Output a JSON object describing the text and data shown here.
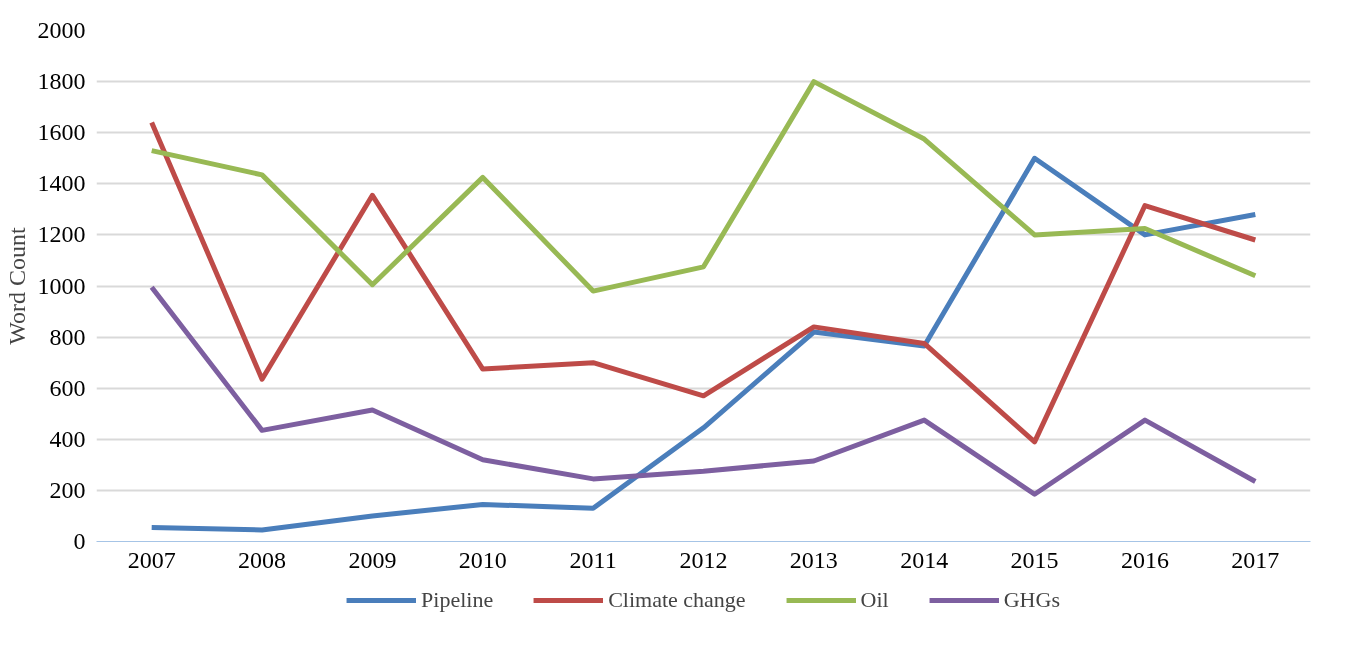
{
  "chart_data": {
    "type": "line",
    "ylabel": "Word Count",
    "categories": [
      "2007",
      "2008",
      "2009",
      "2010",
      "2011",
      "2012",
      "2013",
      "2014",
      "2015",
      "2016",
      "2017"
    ],
    "series": [
      {
        "name": "Pipeline",
        "color": "#4a7ebb",
        "values": [
          55,
          45,
          100,
          145,
          130,
          445,
          820,
          765,
          1500,
          1200,
          1280
        ]
      },
      {
        "name": "Climate change",
        "color": "#be4b48",
        "values": [
          1640,
          635,
          1355,
          675,
          700,
          570,
          840,
          775,
          390,
          1315,
          1180
        ]
      },
      {
        "name": "Oil",
        "color": "#98b954",
        "values": [
          1530,
          1435,
          1005,
          1425,
          980,
          1075,
          1800,
          1575,
          1200,
          1225,
          1040
        ]
      },
      {
        "name": "GHGs",
        "color": "#7d5fa0",
        "values": [
          995,
          435,
          515,
          320,
          245,
          275,
          315,
          475,
          185,
          475,
          235
        ]
      }
    ],
    "ylim": [
      0,
      2000
    ],
    "yticks": [
      0,
      200,
      400,
      600,
      800,
      1000,
      1200,
      1400,
      1600,
      1800,
      2000
    ],
    "grid": "y",
    "legend": "bottom",
    "marker": "none",
    "line_style": "solid"
  }
}
